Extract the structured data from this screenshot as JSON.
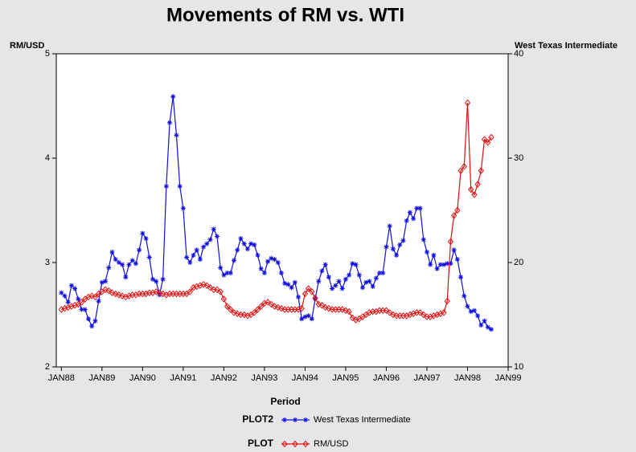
{
  "chart_data": {
    "type": "line",
    "title": "Movements of RM vs. WTI",
    "y_label": "RM/USD",
    "y2_label": "West Texas Intermediate",
    "x_label": "Period",
    "x": [
      0,
      1,
      2,
      3,
      4,
      5,
      6,
      7,
      8,
      9,
      10,
      11,
      12,
      13,
      14,
      15,
      16,
      17,
      18,
      19,
      20,
      21,
      22,
      23,
      24,
      25,
      26,
      27,
      28,
      29,
      30,
      31,
      32,
      33,
      34,
      35,
      36,
      37,
      38,
      39,
      40,
      41,
      42,
      43,
      44,
      45,
      46,
      47,
      48,
      49,
      50,
      51,
      52,
      53,
      54,
      55,
      56,
      57,
      58,
      59,
      60,
      61,
      62,
      63,
      64,
      65,
      66,
      67,
      68,
      69,
      70,
      71,
      72,
      73,
      74,
      75,
      76,
      77,
      78,
      79,
      80,
      81,
      82,
      83,
      84,
      85,
      86,
      87,
      88,
      89,
      90,
      91,
      92,
      93,
      94,
      95,
      96,
      97,
      98,
      99,
      100,
      101,
      102,
      103,
      104,
      105,
      106,
      107,
      108,
      109,
      110,
      111,
      112,
      113,
      114,
      115,
      116,
      117,
      118,
      119,
      120,
      121,
      122,
      123,
      124,
      125,
      126,
      127
    ],
    "xlim": [
      -1.5,
      132
    ],
    "xticks": [
      {
        "value": 0,
        "label": "JAN88"
      },
      {
        "value": 12,
        "label": "JAN89"
      },
      {
        "value": 24,
        "label": "JAN90"
      },
      {
        "value": 36,
        "label": "JAN91"
      },
      {
        "value": 48,
        "label": "JAN92"
      },
      {
        "value": 60,
        "label": "JAN93"
      },
      {
        "value": 72,
        "label": "JAN94"
      },
      {
        "value": 84,
        "label": "JAN95"
      },
      {
        "value": 96,
        "label": "JAN96"
      },
      {
        "value": 108,
        "label": "JAN97"
      },
      {
        "value": 120,
        "label": "JAN98"
      },
      {
        "value": 132,
        "label": "JAN99"
      }
    ],
    "ylim": [
      2,
      5
    ],
    "yticks": [
      2,
      3,
      4,
      5
    ],
    "y2lim": [
      10,
      40
    ],
    "y2ticks": [
      10,
      20,
      30,
      40
    ],
    "series": [
      {
        "name": "West Texas Intermediate",
        "plot_name": "PLOT2",
        "color": "#1010e0",
        "marker": "star",
        "axis": "y2",
        "values": [
          17.1,
          16.8,
          16.2,
          17.8,
          17.5,
          16.5,
          15.5,
          15.5,
          14.6,
          13.9,
          14.4,
          16.3,
          18.1,
          18.2,
          19.5,
          21.0,
          20.3,
          20.0,
          19.8,
          18.6,
          19.8,
          20.2,
          19.9,
          21.2,
          22.8,
          22.3,
          20.5,
          18.4,
          18.2,
          16.9,
          18.4,
          27.3,
          33.4,
          35.9,
          32.2,
          27.3,
          25.2,
          20.5,
          20.0,
          20.7,
          21.2,
          20.3,
          21.5,
          21.8,
          22.2,
          23.2,
          22.5,
          19.5,
          18.8,
          19.0,
          19.0,
          20.2,
          21.2,
          22.3,
          21.8,
          21.3,
          21.8,
          21.7,
          20.7,
          19.4,
          19.0,
          20.1,
          20.4,
          20.3,
          20.0,
          19.0,
          18.0,
          17.9,
          17.6,
          18.1,
          16.7,
          14.6,
          14.8,
          14.9,
          14.6,
          16.5,
          18.2,
          19.2,
          19.8,
          18.6,
          17.5,
          17.8,
          18.2,
          17.5,
          18.4,
          18.8,
          19.9,
          19.8,
          18.8,
          17.6,
          18.1,
          18.2,
          17.7,
          18.5,
          19.0,
          19.0,
          21.5,
          23.5,
          21.3,
          20.7,
          21.7,
          22.1,
          24.0,
          24.8,
          24.2,
          25.2,
          25.2,
          22.2,
          21.0,
          19.8,
          20.7,
          19.4,
          19.8,
          19.8,
          19.9,
          19.9,
          21.2,
          20.3,
          18.6,
          16.8,
          15.8,
          15.3,
          15.4,
          14.9,
          14.0,
          14.4,
          13.8,
          13.6
        ]
      },
      {
        "name": "RM/USD",
        "plot_name": "PLOT",
        "color": "#e01010",
        "marker": "diamond",
        "axis": "y",
        "values": [
          2.55,
          2.56,
          2.57,
          2.58,
          2.59,
          2.6,
          2.62,
          2.65,
          2.67,
          2.68,
          2.67,
          2.7,
          2.72,
          2.74,
          2.73,
          2.71,
          2.7,
          2.69,
          2.68,
          2.67,
          2.68,
          2.69,
          2.69,
          2.7,
          2.7,
          2.7,
          2.71,
          2.71,
          2.72,
          2.71,
          2.7,
          2.69,
          2.7,
          2.7,
          2.7,
          2.7,
          2.7,
          2.7,
          2.72,
          2.76,
          2.77,
          2.78,
          2.79,
          2.78,
          2.76,
          2.74,
          2.74,
          2.72,
          2.65,
          2.58,
          2.55,
          2.52,
          2.51,
          2.5,
          2.5,
          2.49,
          2.5,
          2.52,
          2.55,
          2.58,
          2.61,
          2.62,
          2.6,
          2.58,
          2.57,
          2.56,
          2.55,
          2.55,
          2.55,
          2.55,
          2.55,
          2.56,
          2.7,
          2.75,
          2.72,
          2.66,
          2.6,
          2.59,
          2.57,
          2.56,
          2.55,
          2.55,
          2.55,
          2.55,
          2.54,
          2.53,
          2.47,
          2.45,
          2.46,
          2.48,
          2.5,
          2.52,
          2.53,
          2.53,
          2.54,
          2.54,
          2.54,
          2.52,
          2.5,
          2.49,
          2.49,
          2.49,
          2.49,
          2.5,
          2.51,
          2.52,
          2.52,
          2.5,
          2.48,
          2.48,
          2.49,
          2.5,
          2.51,
          2.52,
          2.63,
          3.2,
          3.45,
          3.5,
          3.88,
          3.92,
          4.53,
          3.7,
          3.65,
          3.75,
          3.88,
          4.18,
          4.15,
          4.2
        ]
      }
    ]
  }
}
